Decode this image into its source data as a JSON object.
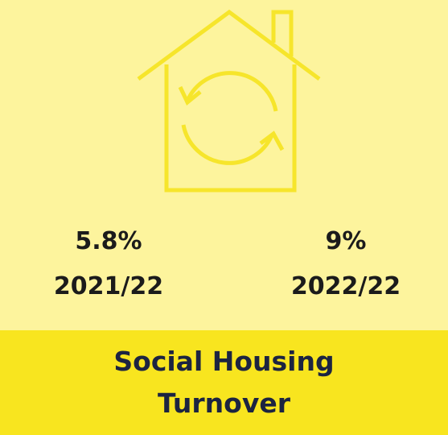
{
  "stats": [
    {
      "value": "5.8%",
      "period": "2021/22"
    },
    {
      "value": "9%",
      "period": "2022/22"
    }
  ],
  "title": "Social Housing Turnover"
}
